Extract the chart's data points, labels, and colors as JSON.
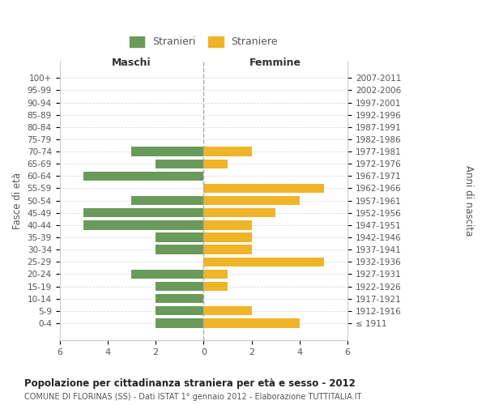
{
  "age_groups": [
    "100+",
    "95-99",
    "90-94",
    "85-89",
    "80-84",
    "75-79",
    "70-74",
    "65-69",
    "60-64",
    "55-59",
    "50-54",
    "45-49",
    "40-44",
    "35-39",
    "30-34",
    "25-29",
    "20-24",
    "15-19",
    "10-14",
    "5-9",
    "0-4"
  ],
  "birth_years": [
    "≤ 1911",
    "1912-1916",
    "1917-1921",
    "1922-1926",
    "1927-1931",
    "1932-1936",
    "1937-1941",
    "1942-1946",
    "1947-1951",
    "1952-1956",
    "1957-1961",
    "1962-1966",
    "1967-1971",
    "1972-1976",
    "1977-1981",
    "1982-1986",
    "1987-1991",
    "1992-1996",
    "1997-2001",
    "2002-2006",
    "2007-2011"
  ],
  "maschi": [
    0,
    0,
    0,
    0,
    0,
    0,
    3,
    2,
    5,
    0,
    3,
    5,
    5,
    2,
    2,
    0,
    3,
    2,
    2,
    2,
    2
  ],
  "femmine": [
    0,
    0,
    0,
    0,
    0,
    0,
    2,
    1,
    0,
    5,
    4,
    3,
    2,
    2,
    2,
    5,
    1,
    1,
    0,
    2,
    4
  ],
  "color_maschi": "#6a9a5a",
  "color_femmine": "#f0b429",
  "title": "Popolazione per cittadinanza straniera per età e sesso - 2012",
  "subtitle": "COMUNE DI FLORINAS (SS) - Dati ISTAT 1° gennaio 2012 - Elaborazione TUTTITALIA.IT",
  "xlabel_left": "Maschi",
  "xlabel_right": "Femmine",
  "ylabel_left": "Fasce di età",
  "ylabel_right": "Anni di nascita",
  "legend_maschi": "Stranieri",
  "legend_femmine": "Straniere",
  "xlim": 6,
  "bg_color": "#ffffff",
  "grid_color": "#dddddd"
}
